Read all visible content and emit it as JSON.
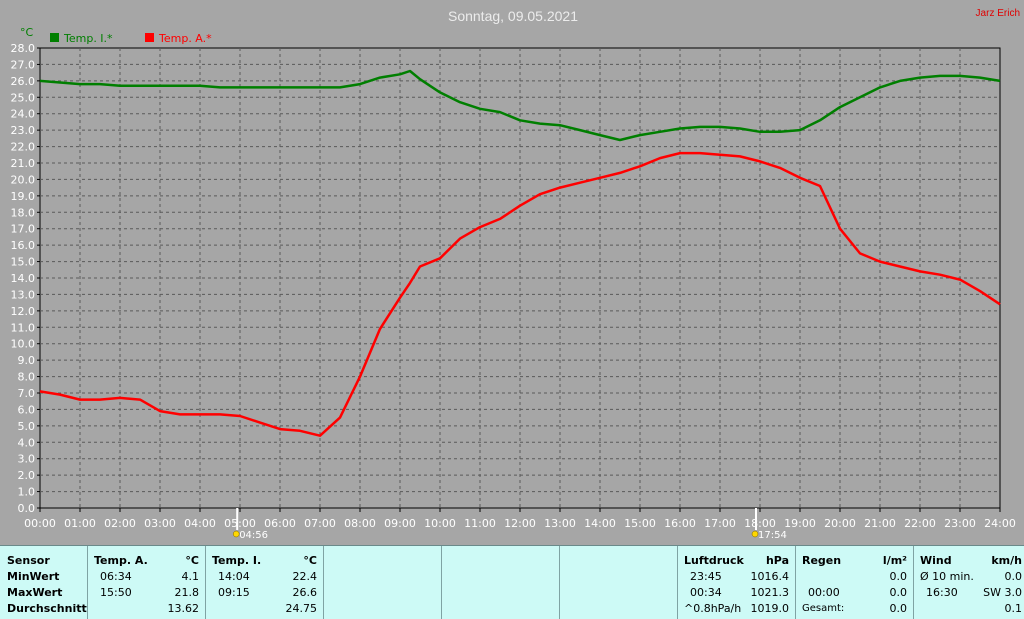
{
  "header": {
    "title": "Sonntag, 09.05.2021",
    "author": "Jarz Erich"
  },
  "chart_data": {
    "type": "line",
    "title": "Sonntag, 09.05.2021",
    "ylabel": "°C",
    "ylim": [
      0.0,
      28.0
    ],
    "ytick_step": 1.0,
    "xlim": [
      0,
      24
    ],
    "grid": true,
    "legend_position": "top-left",
    "x_tick_labels": [
      "00:00",
      "01:00",
      "02:00",
      "03:00",
      "04:00",
      "05:00",
      "06:00",
      "07:00",
      "08:00",
      "09:00",
      "10:00",
      "11:00",
      "12:00",
      "13:00",
      "14:00",
      "15:00",
      "16:00",
      "17:00",
      "18:00",
      "19:00",
      "20:00",
      "21:00",
      "22:00",
      "23:00",
      "24:00"
    ],
    "x": [
      0,
      0.5,
      1,
      1.5,
      2,
      2.5,
      3,
      3.5,
      4,
      4.5,
      5,
      5.5,
      6,
      6.5,
      7,
      7.5,
      8,
      8.5,
      9,
      9.25,
      9.5,
      10,
      10.5,
      11,
      11.5,
      12,
      12.5,
      13,
      13.5,
      14,
      14.5,
      15,
      15.5,
      16,
      16.5,
      17,
      17.5,
      18,
      18.5,
      19,
      19.5,
      20,
      20.5,
      21,
      21.5,
      22,
      22.5,
      23,
      23.5,
      24
    ],
    "series": [
      {
        "name": "Temp. I.*",
        "color": "#007f00",
        "values": [
          26.0,
          25.9,
          25.8,
          25.8,
          25.7,
          25.7,
          25.7,
          25.7,
          25.7,
          25.6,
          25.6,
          25.6,
          25.6,
          25.6,
          25.6,
          25.6,
          25.8,
          26.2,
          26.4,
          26.6,
          26.1,
          25.3,
          24.7,
          24.3,
          24.1,
          23.6,
          23.4,
          23.3,
          23.0,
          22.7,
          22.4,
          22.7,
          22.9,
          23.1,
          23.2,
          23.2,
          23.1,
          22.9,
          22.9,
          23.0,
          23.6,
          24.4,
          25.0,
          25.6,
          26.0,
          26.2,
          26.3,
          26.3,
          26.2,
          26.0
        ]
      },
      {
        "name": "Temp. A.*",
        "color": "#ff0000",
        "values": [
          7.1,
          6.9,
          6.6,
          6.6,
          6.7,
          6.6,
          5.9,
          5.7,
          5.7,
          5.7,
          5.6,
          5.2,
          4.8,
          4.7,
          4.4,
          5.5,
          8.0,
          10.9,
          12.8,
          13.7,
          14.7,
          15.2,
          16.4,
          17.1,
          17.6,
          18.4,
          19.1,
          19.5,
          19.8,
          20.1,
          20.4,
          20.8,
          21.3,
          21.6,
          21.6,
          21.5,
          21.4,
          21.1,
          20.7,
          20.1,
          19.6,
          17.0,
          15.5,
          15.0,
          14.7,
          14.4,
          14.2,
          13.9,
          13.2,
          12.4
        ]
      }
    ],
    "markers": [
      {
        "x": 4.93,
        "label": "04:56",
        "icon": "sunrise-icon"
      },
      {
        "x": 17.9,
        "label": "17:54",
        "icon": "sunset-icon"
      }
    ]
  },
  "stats": {
    "sensor": {
      "header": "Sensor",
      "rows": [
        "MinWert",
        "MaxWert",
        "Durchschnitt"
      ]
    },
    "temp_a": {
      "header": "Temp. A.",
      "unit": "°C",
      "min_time": "06:34",
      "min": "4.1",
      "max_time": "15:50",
      "max": "21.8",
      "avg": "13.62"
    },
    "temp_i": {
      "header": "Temp. I.",
      "unit": "°C",
      "min_time": "14:04",
      "min": "22.4",
      "max_time": "09:15",
      "max": "26.6",
      "avg": "24.75"
    },
    "luftdruck": {
      "header": "Luftdruck",
      "unit": "hPa",
      "r1_left": "23:45",
      "r1_val": "1016.4",
      "r2_left": "00:34",
      "r2_val": "1021.3",
      "r3_left": "^0.8hPa/h",
      "r3_val": "1019.0"
    },
    "regen": {
      "header": "Regen",
      "unit": "l/m²",
      "r1_val": "0.0",
      "r2_left": "00:00",
      "r2_val": "0.0",
      "r3_left": "Gesamt:",
      "r3_val": "0.0"
    },
    "wind": {
      "header": "Wind",
      "unit": "km/h",
      "r1_left": "Ø 10 min.",
      "r1_val": "0.0",
      "r2_left": "16:30",
      "r2_val": "SW 3.0",
      "r3_val": "0.1"
    }
  }
}
